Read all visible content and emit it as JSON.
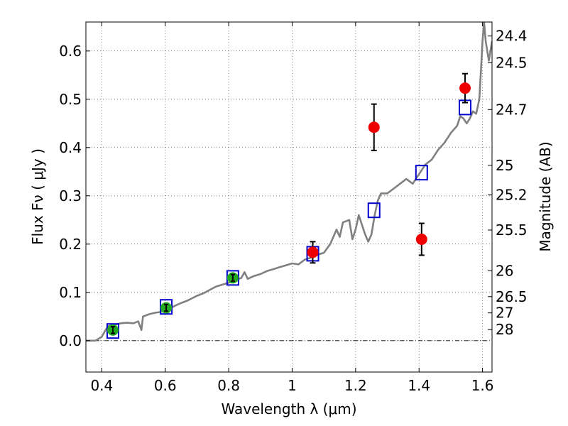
{
  "chart_data": {
    "type": "scatter",
    "title": "",
    "xlabel": "Wavelength  λ (μm)",
    "ylabel": "Flux  Fν  ( μJy )",
    "ylabel_right": "Magnitude (AB)",
    "xlim": [
      0.35,
      1.63
    ],
    "ylim": [
      -0.065,
      0.66
    ],
    "grid": true,
    "x_ticks": [
      {
        "value": 0.4,
        "label": "0.4"
      },
      {
        "value": 0.6,
        "label": "0.6"
      },
      {
        "value": 0.8,
        "label": "0.8"
      },
      {
        "value": 1.0,
        "label": "1"
      },
      {
        "value": 1.2,
        "label": "1.2"
      },
      {
        "value": 1.4,
        "label": "1.4"
      },
      {
        "value": 1.6,
        "label": "1.6"
      }
    ],
    "y_ticks": [
      {
        "value": 0.0,
        "label": "0.0"
      },
      {
        "value": 0.1,
        "label": "0.1"
      },
      {
        "value": 0.2,
        "label": "0.2"
      },
      {
        "value": 0.3,
        "label": "0.3"
      },
      {
        "value": 0.4,
        "label": "0.4"
      },
      {
        "value": 0.5,
        "label": "0.5"
      },
      {
        "value": 0.6,
        "label": "0.6"
      }
    ],
    "right_ticks": [
      {
        "mag": 24.4,
        "label": "24.4"
      },
      {
        "mag": 24.5,
        "label": "24.5"
      },
      {
        "mag": 24.7,
        "label": "24.7"
      },
      {
        "mag": 25.0,
        "label": "25"
      },
      {
        "mag": 25.2,
        "label": "25.2"
      },
      {
        "mag": 25.5,
        "label": "25.5"
      },
      {
        "mag": 26.0,
        "label": "26"
      },
      {
        "mag": 26.5,
        "label": "26.5"
      },
      {
        "mag": 27.0,
        "label": "27"
      },
      {
        "mag": 28.0,
        "label": "28"
      }
    ],
    "zero_line": 0.0,
    "series": [
      {
        "kind": "line",
        "color": "#808080",
        "points": [
          [
            0.35,
            0.0
          ],
          [
            0.38,
            0.0
          ],
          [
            0.4,
            0.008
          ],
          [
            0.41,
            0.02
          ],
          [
            0.42,
            0.03
          ],
          [
            0.44,
            0.033
          ],
          [
            0.46,
            0.036
          ],
          [
            0.48,
            0.037
          ],
          [
            0.5,
            0.036
          ],
          [
            0.515,
            0.04
          ],
          [
            0.525,
            0.022
          ],
          [
            0.53,
            0.05
          ],
          [
            0.55,
            0.055
          ],
          [
            0.57,
            0.058
          ],
          [
            0.59,
            0.06
          ],
          [
            0.61,
            0.065
          ],
          [
            0.63,
            0.072
          ],
          [
            0.65,
            0.078
          ],
          [
            0.67,
            0.083
          ],
          [
            0.7,
            0.093
          ],
          [
            0.72,
            0.098
          ],
          [
            0.74,
            0.105
          ],
          [
            0.76,
            0.112
          ],
          [
            0.78,
            0.116
          ],
          [
            0.8,
            0.12
          ],
          [
            0.82,
            0.125
          ],
          [
            0.84,
            0.13
          ],
          [
            0.85,
            0.142
          ],
          [
            0.86,
            0.128
          ],
          [
            0.88,
            0.134
          ],
          [
            0.9,
            0.138
          ],
          [
            0.92,
            0.144
          ],
          [
            0.94,
            0.148
          ],
          [
            0.96,
            0.152
          ],
          [
            0.98,
            0.156
          ],
          [
            1.0,
            0.16
          ],
          [
            1.02,
            0.158
          ],
          [
            1.04,
            0.168
          ],
          [
            1.06,
            0.172
          ],
          [
            1.08,
            0.178
          ],
          [
            1.1,
            0.182
          ],
          [
            1.12,
            0.2
          ],
          [
            1.14,
            0.23
          ],
          [
            1.15,
            0.215
          ],
          [
            1.16,
            0.245
          ],
          [
            1.18,
            0.25
          ],
          [
            1.19,
            0.21
          ],
          [
            1.2,
            0.23
          ],
          [
            1.21,
            0.26
          ],
          [
            1.22,
            0.24
          ],
          [
            1.23,
            0.22
          ],
          [
            1.24,
            0.205
          ],
          [
            1.25,
            0.22
          ],
          [
            1.26,
            0.26
          ],
          [
            1.27,
            0.29
          ],
          [
            1.28,
            0.305
          ],
          [
            1.3,
            0.305
          ],
          [
            1.32,
            0.315
          ],
          [
            1.34,
            0.325
          ],
          [
            1.36,
            0.335
          ],
          [
            1.38,
            0.325
          ],
          [
            1.4,
            0.345
          ],
          [
            1.42,
            0.365
          ],
          [
            1.44,
            0.375
          ],
          [
            1.46,
            0.395
          ],
          [
            1.48,
            0.41
          ],
          [
            1.5,
            0.43
          ],
          [
            1.52,
            0.445
          ],
          [
            1.53,
            0.465
          ],
          [
            1.54,
            0.46
          ],
          [
            1.55,
            0.45
          ],
          [
            1.56,
            0.46
          ],
          [
            1.57,
            0.475
          ],
          [
            1.58,
            0.47
          ],
          [
            1.59,
            0.5
          ],
          [
            1.595,
            0.56
          ],
          [
            1.6,
            0.62
          ],
          [
            1.605,
            0.66
          ],
          [
            1.61,
            0.62
          ],
          [
            1.62,
            0.58
          ],
          [
            1.63,
            0.62
          ]
        ]
      },
      {
        "kind": "squares",
        "color": "#0000cc",
        "points": [
          [
            0.435,
            0.02
          ],
          [
            0.603,
            0.07
          ],
          [
            0.813,
            0.13
          ],
          [
            1.065,
            0.18
          ],
          [
            1.258,
            0.27
          ],
          [
            1.408,
            0.348
          ],
          [
            1.545,
            0.483
          ]
        ]
      },
      {
        "kind": "points",
        "color": "#22aa22",
        "points": [
          {
            "x": 0.435,
            "y": 0.022,
            "err": 0.007
          },
          {
            "x": 0.603,
            "y": 0.068,
            "err": 0.007
          },
          {
            "x": 0.813,
            "y": 0.13,
            "err": 0.007
          }
        ]
      },
      {
        "kind": "points",
        "color": "#ee0000",
        "points": [
          {
            "x": 1.065,
            "y": 0.183,
            "err": 0.022
          },
          {
            "x": 1.258,
            "y": 0.442,
            "err": 0.048
          },
          {
            "x": 1.408,
            "y": 0.21,
            "err": 0.033
          },
          {
            "x": 1.545,
            "y": 0.523,
            "err": 0.03
          }
        ]
      }
    ]
  }
}
